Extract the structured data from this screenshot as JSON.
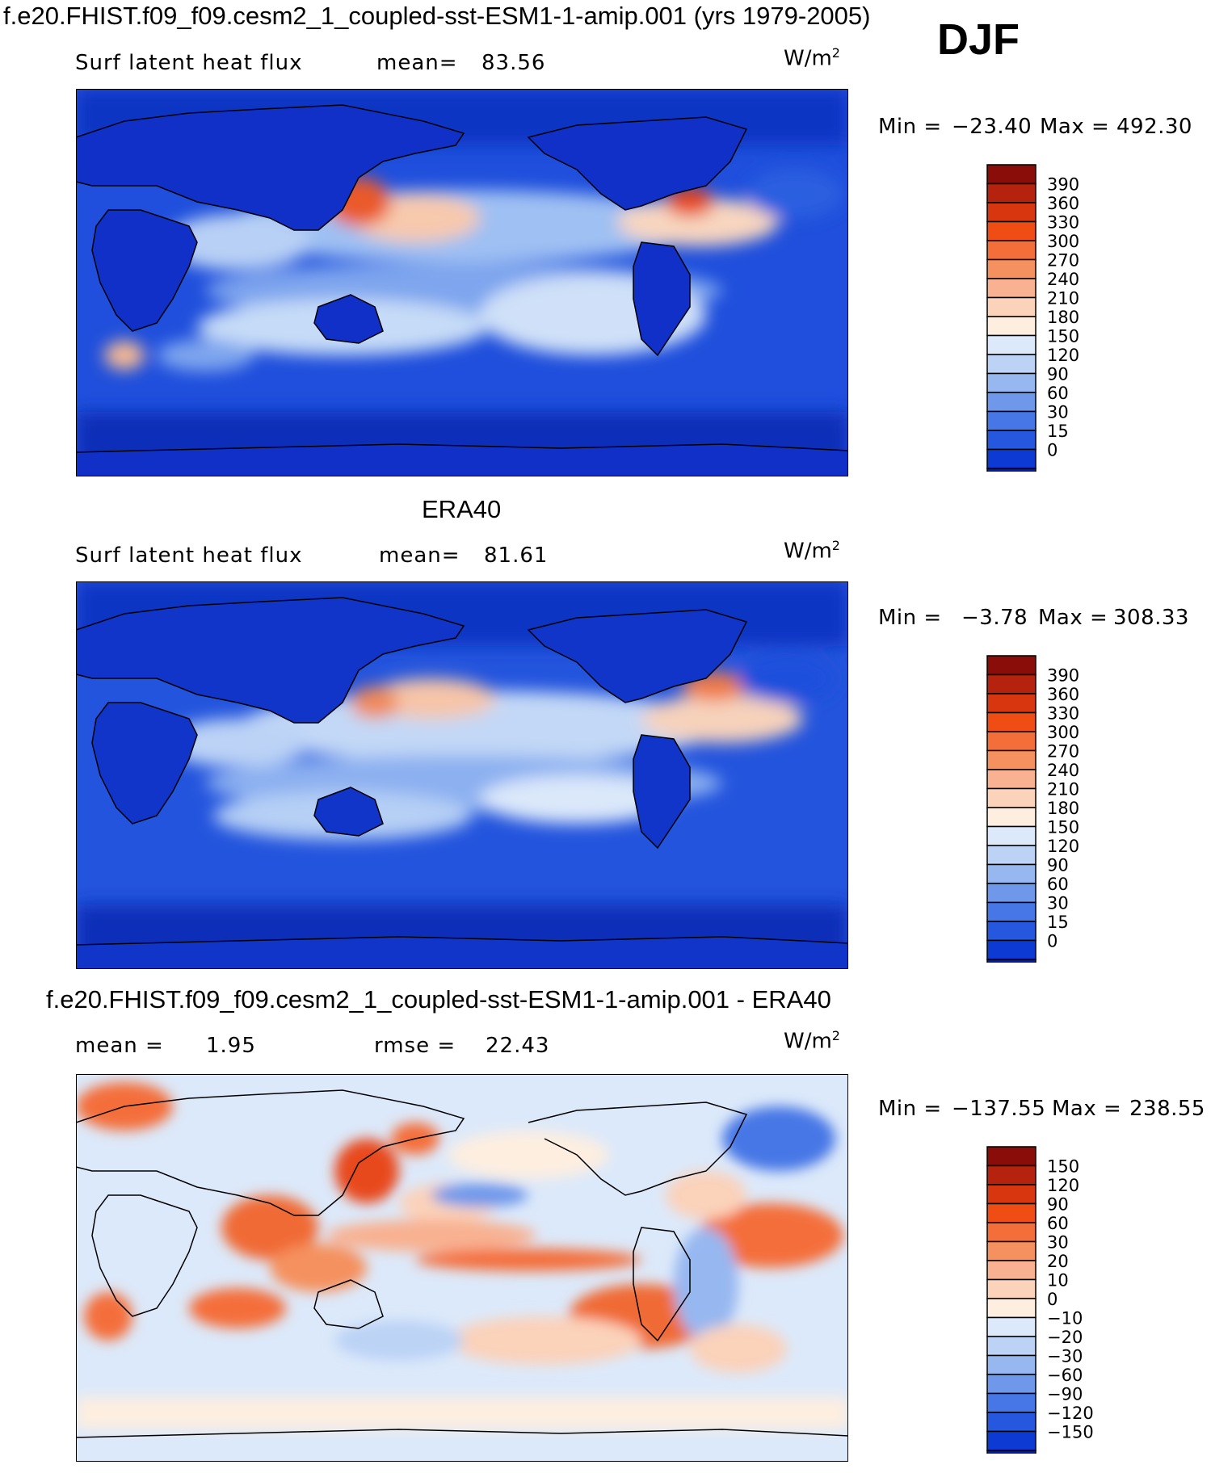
{
  "header": {
    "title": "f.e20.FHIST.f09_f09.cesm2_1_coupled-sst-ESM1-1-amip.001 (yrs 1979-2005)",
    "season": "DJF"
  },
  "chart_data": [
    {
      "type": "heatmap",
      "panel_title": "",
      "left_label": "Surf latent heat flux",
      "stat_label": "mean=",
      "stat_value": "83.56",
      "units_base": "W/m",
      "units_exp": "2",
      "min_label": "Min =",
      "min_value": "−23.40",
      "max_label": "Max =",
      "max_value": "492.30",
      "colorbar_levels": [
        "390",
        "360",
        "330",
        "300",
        "270",
        "240",
        "210",
        "180",
        "150",
        "120",
        "90",
        "60",
        "30",
        "15",
        "0"
      ],
      "colorbar_colors": [
        "#8b0d0a",
        "#b5230e",
        "#d8360f",
        "#f04d14",
        "#f46e3a",
        "#f5915f",
        "#f8b191",
        "#fbd2ba",
        "#fdeee0",
        "#dce9fa",
        "#bcd3f6",
        "#96b7f0",
        "#6f98ea",
        "#4777e6",
        "#2558df",
        "#0d3ad2",
        "#031a9c"
      ]
    },
    {
      "type": "heatmap",
      "panel_title": "ERA40",
      "left_label": "Surf latent heat flux",
      "stat_label": "mean=",
      "stat_value": "81.61",
      "units_base": "W/m",
      "units_exp": "2",
      "min_label": "Min =",
      "min_value": "−3.78",
      "max_label": "Max =",
      "max_value": "308.33",
      "colorbar_levels": [
        "390",
        "360",
        "330",
        "300",
        "270",
        "240",
        "210",
        "180",
        "150",
        "120",
        "90",
        "60",
        "30",
        "15",
        "0"
      ],
      "colorbar_colors": [
        "#8b0d0a",
        "#b5230e",
        "#d8360f",
        "#f04d14",
        "#f46e3a",
        "#f5915f",
        "#f8b191",
        "#fbd2ba",
        "#fdeee0",
        "#dce9fa",
        "#bcd3f6",
        "#96b7f0",
        "#6f98ea",
        "#4777e6",
        "#2558df",
        "#0d3ad2",
        "#031a9c"
      ]
    },
    {
      "type": "heatmap",
      "panel_title": "f.e20.FHIST.f09_f09.cesm2_1_coupled-sst-ESM1-1-amip.001 - ERA40",
      "left_label": "mean =",
      "left_value": "1.95",
      "stat_label": "rmse =",
      "stat_value": "22.43",
      "units_base": "W/m",
      "units_exp": "2",
      "min_label": "Min =",
      "min_value": "−137.55",
      "max_label": "Max =",
      "max_value": "238.55",
      "colorbar_levels": [
        "150",
        "120",
        "90",
        "60",
        "30",
        "20",
        "10",
        "0",
        "−10",
        "−20",
        "−30",
        "−60",
        "−90",
        "−120",
        "−150"
      ],
      "colorbar_colors": [
        "#8b0d0a",
        "#b5230e",
        "#d8360f",
        "#f04d14",
        "#f46e3a",
        "#f5915f",
        "#f8b191",
        "#fbd2ba",
        "#fdeee0",
        "#dce9fa",
        "#bcd3f6",
        "#96b7f0",
        "#6f98ea",
        "#4777e6",
        "#2558df",
        "#0d3ad2",
        "#031a9c"
      ]
    }
  ]
}
